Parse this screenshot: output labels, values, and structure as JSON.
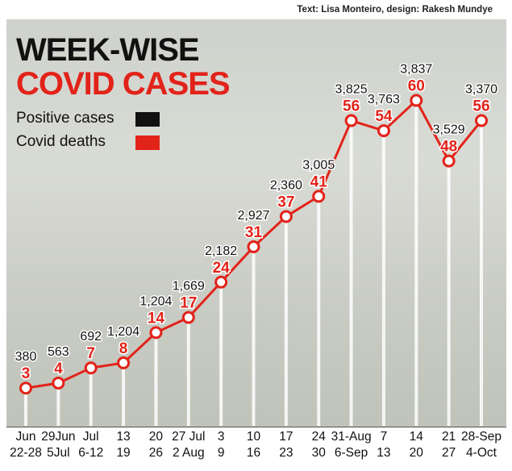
{
  "credit": "Text: Lisa Monteiro, design: Rakesh Mundye",
  "title_line1": "WEEK-WISE",
  "title_line2": "COVID CASES",
  "legend": [
    {
      "label": "Positive cases",
      "color": "#111111"
    },
    {
      "label": "Covid deaths",
      "color": "#e2231a"
    }
  ],
  "chart_data": {
    "type": "line",
    "title": "WEEK-WISE COVID CASES",
    "categories": [
      [
        "Jun",
        "22-28"
      ],
      [
        "29Jun",
        "5Jul"
      ],
      [
        "Jul",
        "6-12"
      ],
      [
        "13",
        "19"
      ],
      [
        "20",
        "26"
      ],
      [
        "27 Jul",
        "2 Aug"
      ],
      [
        "3",
        "9"
      ],
      [
        "10",
        "16"
      ],
      [
        "17",
        "23"
      ],
      [
        "24",
        "30"
      ],
      [
        "31-Aug",
        "6-Sep"
      ],
      [
        "7",
        "13"
      ],
      [
        "14",
        "20"
      ],
      [
        "21",
        "27"
      ],
      [
        "28-Sep",
        "4-Oct"
      ]
    ],
    "series": [
      {
        "name": "Positive cases",
        "color": "#111111",
        "values": [
          380,
          563,
          692,
          1204,
          1204,
          1669,
          2182,
          2927,
          2360,
          3005,
          3825,
          3763,
          3837,
          3529,
          3370
        ],
        "labels": [
          "380",
          "563",
          "692",
          "1,204",
          "1,204",
          "1,669",
          "2,182",
          "2,927",
          "2,360",
          "3,005",
          "3,825",
          "3,763",
          "3,837",
          "3,529",
          "3,370"
        ]
      },
      {
        "name": "Covid deaths",
        "color": "#e2231a",
        "values": [
          3,
          4,
          7,
          8,
          14,
          17,
          24,
          31,
          37,
          41,
          56,
          54,
          60,
          48,
          56
        ]
      }
    ],
    "ylim": [
      0,
      62
    ],
    "grid": false,
    "legend_position": "top-left"
  }
}
